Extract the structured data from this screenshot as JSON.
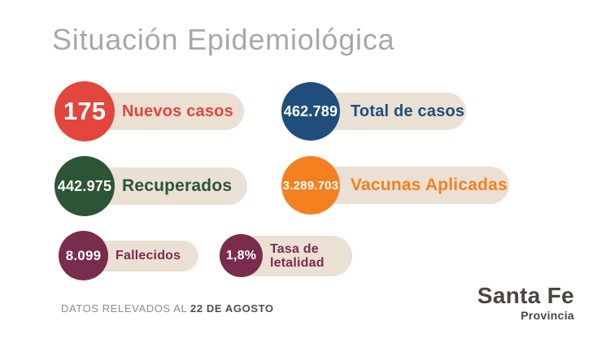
{
  "title": "Situación Epidemiológica",
  "pill_color": "#EBE0D4",
  "stats": [
    {
      "id": "nuevos-casos",
      "value": "175",
      "label": "Nuevos casos",
      "color": "#E2463C"
    },
    {
      "id": "total-de-casos",
      "value": "462.789",
      "label": "Total de casos",
      "color": "#1F4E7D"
    },
    {
      "id": "recuperados",
      "value": "442.975",
      "label": "Recuperados",
      "color": "#2C5535"
    },
    {
      "id": "vacunas-aplicadas",
      "value": "3.289.703",
      "label": "Vacunas Aplicadas",
      "color": "#F5801F"
    },
    {
      "id": "fallecidos",
      "value": "8.099",
      "label": "Fallecidos",
      "color": "#7A2C4D"
    },
    {
      "id": "tasa-de-letalidad",
      "value": "1,8%",
      "label_line1": "Tasa de",
      "label_line2": "letalidad",
      "color": "#7A2C4D"
    }
  ],
  "footer": {
    "prefix": "DATOS RELEVADOS AL",
    "date": "22 DE AGOSTO"
  },
  "logo": {
    "name": "Santa Fe",
    "subtitle": "Provincia"
  },
  "chart_data": {
    "type": "table",
    "title": "Situación Epidemiológica",
    "metrics": [
      {
        "label": "Nuevos casos",
        "value": 175
      },
      {
        "label": "Total de casos",
        "value": 462789
      },
      {
        "label": "Recuperados",
        "value": 442975
      },
      {
        "label": "Vacunas Aplicadas",
        "value": 3289703
      },
      {
        "label": "Fallecidos",
        "value": 8099
      },
      {
        "label": "Tasa de letalidad",
        "value": "1,8%"
      }
    ],
    "note": "DATOS RELEVADOS AL 22 DE AGOSTO"
  }
}
